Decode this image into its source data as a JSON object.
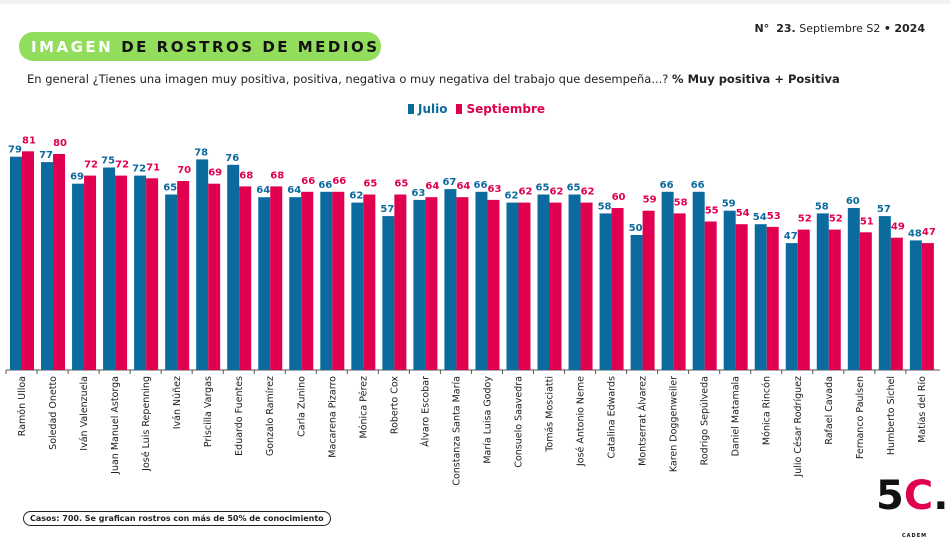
{
  "header": {
    "issue_prefix": "N°",
    "issue_number": "23.",
    "issue_period": "Septiembre S2",
    "issue_sep": "•",
    "issue_year": "2024",
    "title_a": "IMAGEN",
    "title_b": "DE ROSTROS DE MEDIOS",
    "question": "En general ¿Tienes una imagen muy positiva, positiva, negativa o muy negativa del trabajo que desempeña...?",
    "question_metric": "% Muy positiva + Positiva"
  },
  "footer": {
    "note": "Casos: 700. Se grafican rostros con más de 50% de conocimiento",
    "logo": "5C.",
    "logo_sub": "CADEM"
  },
  "chart_data": {
    "type": "bar",
    "grid": false,
    "legend": "top-center",
    "ylim": [
      0,
      100
    ],
    "categories": [
      "Ramón Ulloa",
      "Soledad Onetto",
      "Iván Valenzuela",
      "Juan Manuel Astorga",
      "José Luis Repenning",
      "Iván Núñez",
      "Priscilla Vargas",
      "Eduardo Fuentes",
      "Gonzalo Ramírez",
      "Carla Zunino",
      "Macarena Pizarro",
      "Mónica Pérez",
      "Roberto Cox",
      "Álvaro Escobar",
      "Constanza Santa María",
      "María Luisa Godoy",
      "Consuelo Saavedra",
      "Tomás Mosciatti",
      "José Antonio Neme",
      "Catalina Edwards",
      "Montserrat Álvarez",
      "Karen Doggenweiler",
      "Rodrigo Sepúlveda",
      "Daniel Matamala",
      "Mónica Rincón",
      "Julio César Rodríguez",
      "Rafael Cavada",
      "Fernanco Paulsen",
      "Humberto Sichel",
      "Matías del Río"
    ],
    "series": [
      {
        "name": "Julio",
        "color": "#0b6a9e",
        "values": [
          79,
          77,
          69,
          75,
          72,
          65,
          78,
          76,
          64,
          64,
          66,
          62,
          57,
          63,
          67,
          66,
          62,
          65,
          65,
          58,
          50,
          66,
          66,
          59,
          54,
          47,
          58,
          60,
          57,
          48
        ]
      },
      {
        "name": "Septiembre",
        "color": "#e0004f",
        "values": [
          81,
          80,
          72,
          72,
          71,
          70,
          69,
          68,
          68,
          66,
          66,
          65,
          65,
          64,
          64,
          63,
          62,
          62,
          62,
          60,
          59,
          58,
          55,
          54,
          53,
          52,
          52,
          51,
          49,
          47
        ]
      }
    ]
  }
}
